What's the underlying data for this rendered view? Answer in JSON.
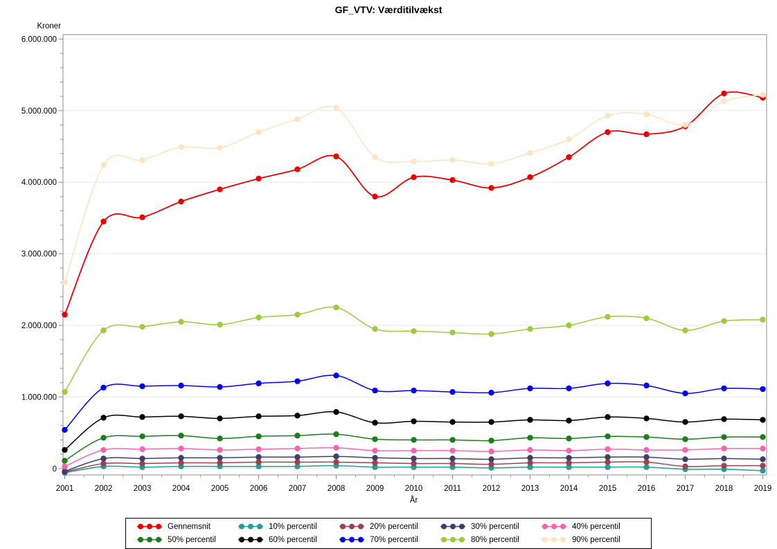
{
  "title": "GF_VTV: Værditilvækst",
  "chart_data": {
    "type": "line",
    "title": "GF_VTV: Værditilvækst",
    "xlabel": "År",
    "ylabel": "Kroner",
    "x": [
      2001,
      2002,
      2003,
      2004,
      2005,
      2006,
      2007,
      2008,
      2009,
      2010,
      2011,
      2012,
      2013,
      2014,
      2015,
      2016,
      2017,
      2018,
      2019
    ],
    "ylim": [
      0,
      6000000
    ],
    "y_ticks": [
      0,
      1000000,
      2000000,
      3000000,
      4000000,
      5000000,
      6000000
    ],
    "y_tick_labels": [
      "0",
      "1.000.000",
      "2.000.000",
      "3.000.000",
      "4.000.000",
      "5.000.000",
      "6.000.000"
    ],
    "y_minor_tick_step": 200000,
    "grid": "horizontal",
    "legend_position": "bottom",
    "series": [
      {
        "name": "Gennemsnit",
        "color": "#ee0000",
        "values": [
          2150000,
          3450000,
          3510000,
          3730000,
          3900000,
          4050000,
          4180000,
          4360000,
          3800000,
          4070000,
          4030000,
          3920000,
          4070000,
          4350000,
          4700000,
          4670000,
          4780000,
          5240000,
          5180000
        ]
      },
      {
        "name": "10% percentil",
        "color": "#259c9c",
        "values": [
          -60000,
          30000,
          20000,
          30000,
          30000,
          30000,
          30000,
          40000,
          20000,
          20000,
          20000,
          10000,
          20000,
          20000,
          20000,
          20000,
          -10000,
          -10000,
          -30000
        ]
      },
      {
        "name": "20% percentil",
        "color": "#9d4050",
        "values": [
          -50000,
          70000,
          70000,
          80000,
          80000,
          90000,
          90000,
          90000,
          80000,
          70000,
          70000,
          60000,
          80000,
          80000,
          90000,
          90000,
          30000,
          40000,
          40000
        ]
      },
      {
        "name": "30% percentil",
        "color": "#3f3f68",
        "values": [
          -40000,
          140000,
          140000,
          150000,
          150000,
          160000,
          160000,
          170000,
          150000,
          140000,
          140000,
          130000,
          150000,
          150000,
          160000,
          160000,
          130000,
          140000,
          130000
        ]
      },
      {
        "name": "40% percentil",
        "color": "#f964ae",
        "values": [
          30000,
          260000,
          270000,
          280000,
          260000,
          270000,
          280000,
          290000,
          250000,
          250000,
          250000,
          240000,
          260000,
          250000,
          270000,
          260000,
          260000,
          280000,
          280000
        ]
      },
      {
        "name": "50% percentil",
        "color": "#1b7e1b",
        "values": [
          110000,
          430000,
          450000,
          460000,
          420000,
          450000,
          460000,
          480000,
          410000,
          400000,
          400000,
          390000,
          430000,
          420000,
          450000,
          440000,
          410000,
          440000,
          440000
        ]
      },
      {
        "name": "60% percentil",
        "color": "#000000",
        "values": [
          260000,
          710000,
          720000,
          730000,
          700000,
          730000,
          740000,
          790000,
          640000,
          660000,
          650000,
          650000,
          680000,
          670000,
          720000,
          700000,
          650000,
          690000,
          680000
        ]
      },
      {
        "name": "70% percentil",
        "color": "#0000ee",
        "values": [
          540000,
          1130000,
          1150000,
          1160000,
          1140000,
          1190000,
          1220000,
          1300000,
          1090000,
          1090000,
          1070000,
          1060000,
          1120000,
          1120000,
          1190000,
          1160000,
          1050000,
          1120000,
          1110000
        ]
      },
      {
        "name": "80% percentil",
        "color": "#9ccb3b",
        "values": [
          1070000,
          1930000,
          1980000,
          2050000,
          2010000,
          2110000,
          2150000,
          2250000,
          1950000,
          1920000,
          1900000,
          1880000,
          1950000,
          2000000,
          2120000,
          2100000,
          1930000,
          2060000,
          2080000
        ]
      },
      {
        "name": "90% percentil",
        "color": "#fde3c0",
        "values": [
          2600000,
          4240000,
          4310000,
          4490000,
          4480000,
          4700000,
          4880000,
          5040000,
          4350000,
          4290000,
          4310000,
          4260000,
          4410000,
          4600000,
          4930000,
          4950000,
          4800000,
          5130000,
          5220000
        ]
      }
    ]
  }
}
